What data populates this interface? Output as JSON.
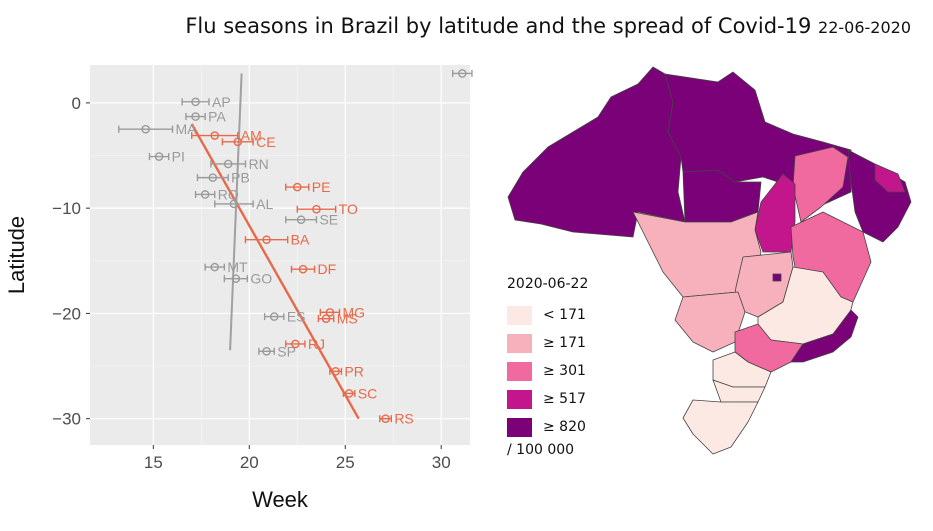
{
  "title": {
    "main": "Flu seasons in Brazil by latitude and the spread of Covid-19",
    "date": "22-06-2020"
  },
  "chart_data": [
    {
      "type": "scatter",
      "xlabel": "Week",
      "ylabel": "Latitude",
      "xlim": [
        11.7,
        31.5
      ],
      "ylim": [
        -32.5,
        3.6
      ],
      "xticks": [
        15,
        20,
        25,
        30
      ],
      "yticks": [
        0,
        -10,
        -20,
        -30
      ],
      "grid": true,
      "colors": {
        "highlight": "#e8694a",
        "muted": "#9a9a9a",
        "panel": "#ebebeb"
      },
      "points": [
        {
          "label": "AP",
          "x": 17.2,
          "y": 0.1,
          "xerr": 0.7,
          "group": "muted"
        },
        {
          "label": "PA",
          "x": 17.2,
          "y": -1.3,
          "xerr": 0.5,
          "group": "muted"
        },
        {
          "label": "MA",
          "x": 14.6,
          "y": -2.5,
          "xerr": 1.4,
          "group": "muted"
        },
        {
          "label": "AM",
          "x": 18.2,
          "y": -3.1,
          "xerr": 1.2,
          "group": "highlight"
        },
        {
          "label": "CE",
          "x": 19.4,
          "y": -3.7,
          "xerr": 0.8,
          "group": "highlight"
        },
        {
          "label": "PI",
          "x": 15.3,
          "y": -5.1,
          "xerr": 0.5,
          "group": "muted"
        },
        {
          "label": "RN",
          "x": 18.9,
          "y": -5.8,
          "xerr": 0.9,
          "group": "muted"
        },
        {
          "label": "PB",
          "x": 18.1,
          "y": -7.1,
          "xerr": 0.8,
          "group": "muted"
        },
        {
          "label": "PE",
          "x": 22.5,
          "y": -8.0,
          "xerr": 0.6,
          "group": "highlight"
        },
        {
          "label": "RO",
          "x": 17.7,
          "y": -8.7,
          "xerr": 0.5,
          "group": "muted"
        },
        {
          "label": "AL",
          "x": 19.2,
          "y": -9.6,
          "xerr": 1.0,
          "group": "muted"
        },
        {
          "label": "TO",
          "x": 23.5,
          "y": -10.1,
          "xerr": 1.0,
          "group": "highlight"
        },
        {
          "label": "SE",
          "x": 22.7,
          "y": -11.1,
          "xerr": 0.8,
          "group": "muted"
        },
        {
          "label": "BA",
          "x": 20.9,
          "y": -13.0,
          "xerr": 1.1,
          "group": "highlight"
        },
        {
          "label": "DF",
          "x": 22.8,
          "y": -15.8,
          "xerr": 0.6,
          "group": "highlight"
        },
        {
          "label": "MT",
          "x": 18.2,
          "y": -15.6,
          "xerr": 0.5,
          "group": "muted"
        },
        {
          "label": "GO",
          "x": 19.3,
          "y": -16.7,
          "xerr": 0.6,
          "group": "muted"
        },
        {
          "label": "ES",
          "x": 21.3,
          "y": -20.3,
          "xerr": 0.5,
          "group": "muted"
        },
        {
          "label": "MG",
          "x": 24.2,
          "y": -19.9,
          "xerr": 0.5,
          "group": "highlight"
        },
        {
          "label": "MS",
          "x": 24.0,
          "y": -20.5,
          "xerr": 0.4,
          "group": "highlight"
        },
        {
          "label": "RJ",
          "x": 22.4,
          "y": -22.9,
          "xerr": 0.5,
          "group": "highlight"
        },
        {
          "label": "SP",
          "x": 20.9,
          "y": -23.6,
          "xerr": 0.4,
          "group": "muted"
        },
        {
          "label": "PR",
          "x": 24.5,
          "y": -25.5,
          "xerr": 0.3,
          "group": "highlight"
        },
        {
          "label": "SC",
          "x": 25.2,
          "y": -27.6,
          "xerr": 0.3,
          "group": "highlight"
        },
        {
          "label": "RS",
          "x": 27.1,
          "y": -30.0,
          "xerr": 0.3,
          "group": "highlight"
        },
        {
          "label": "",
          "x": 31.1,
          "y": 2.8,
          "xerr": 0.5,
          "group": "muted"
        }
      ],
      "fit_lines": [
        {
          "group": "highlight",
          "x": [
            17.0,
            25.7
          ],
          "y": [
            -2.0,
            -30.0
          ]
        },
        {
          "group": "muted",
          "x": [
            19.6,
            19.0
          ],
          "y": [
            2.8,
            -23.5
          ]
        }
      ]
    }
  ],
  "map": {
    "colors": {
      "lt171": "#fde9e4",
      "ge171": "#f7b1bd",
      "ge301": "#f06aa0",
      "ge517": "#c4168c",
      "ge820": "#7a0177",
      "border": "#444444"
    },
    "legend": {
      "title": "2020-06-22",
      "items": [
        {
          "label": "< 171",
          "color": "#fde9e4"
        },
        {
          "label": "≥ 171",
          "color": "#f7b1bd"
        },
        {
          "label": "≥ 301",
          "color": "#f06aa0"
        },
        {
          "label": "≥ 517",
          "color": "#c4168c"
        },
        {
          "label": "≥ 820",
          "color": "#7a0177"
        }
      ],
      "footnote": "/ 100 000"
    }
  }
}
